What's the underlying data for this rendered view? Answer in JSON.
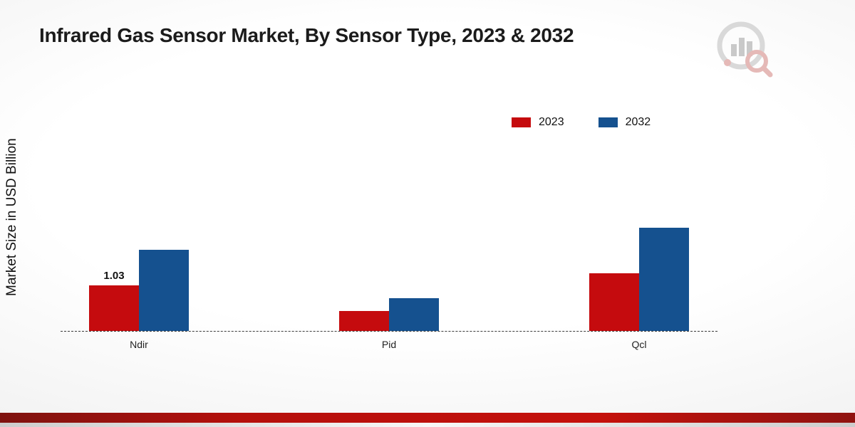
{
  "title": "Infrared Gas Sensor Market, By Sensor Type, 2023 & 2032",
  "chart_data": {
    "type": "bar",
    "title": "Infrared Gas Sensor Market, By Sensor Type, 2023 & 2032",
    "xlabel": "",
    "ylabel": "Market Size in USD Billion",
    "categories": [
      "Ndir",
      "Pid",
      "Qcl"
    ],
    "series": [
      {
        "name": "2023",
        "color": "#c50b0e",
        "values": [
          1.03,
          0.45,
          1.3
        ]
      },
      {
        "name": "2032",
        "color": "#15518f",
        "values": [
          1.82,
          0.73,
          2.32
        ]
      }
    ],
    "ylim": [
      0,
      2.4
    ],
    "grid": false,
    "baseline_style": "dashed",
    "legend_position": "top-right",
    "annotations": [
      {
        "category": "Ndir",
        "series": "2023",
        "text": "1.03"
      }
    ]
  },
  "colors": {
    "accent_red": "#c50b0e",
    "accent_blue": "#15518f",
    "footer_red": "#b5100c"
  }
}
